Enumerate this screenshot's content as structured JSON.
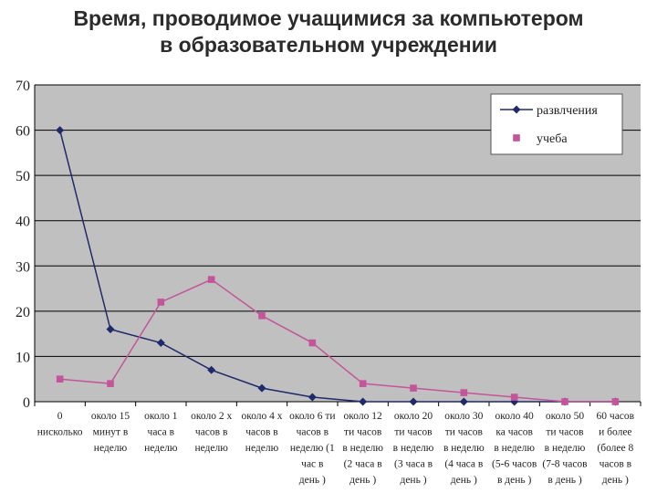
{
  "title": {
    "line1": "Время, проводимое учащимися за компьютером",
    "line2": "в образовательном учреждении"
  },
  "colors": {
    "plot_background": "#c0c0c0",
    "grid": "#000000",
    "series_entertainment": "#1f2a6b",
    "series_study": "#c4559a"
  },
  "chart_data": {
    "type": "line",
    "title": "Время, проводимое учащимися за компьютером в образовательном учреждении",
    "ylim": [
      0,
      70
    ],
    "yticks": [
      0,
      10,
      20,
      30,
      40,
      50,
      60,
      70
    ],
    "grid": true,
    "legend_position": "top-right",
    "categories": [
      [
        "0",
        "нисколько"
      ],
      [
        "около 15",
        "минут в",
        "неделю"
      ],
      [
        "около 1",
        "часа в",
        "неделю"
      ],
      [
        "около 2 х",
        "часов в",
        "неделю"
      ],
      [
        "около 4 х",
        "часов в",
        "неделю"
      ],
      [
        "около 6 ти",
        "часов в",
        "неделю (1",
        "час в",
        "день )"
      ],
      [
        "около 12",
        "ти часов",
        "в неделю",
        "(2 часа в",
        "день )"
      ],
      [
        "около 20",
        "ти часов",
        "в неделю",
        "(3 часа в",
        "день )"
      ],
      [
        "около 30",
        "ти часов",
        "в неделю",
        "(4 часа в",
        "день )"
      ],
      [
        "около 40",
        "ка часов",
        "в неделю",
        "(5-6 часов",
        "в день )"
      ],
      [
        "около 50",
        "ти часов",
        "в неделю",
        "(7-8 часов",
        "в день )"
      ],
      [
        "60 часов",
        "и более",
        "(более 8",
        "часов в",
        "день )"
      ]
    ],
    "series": [
      {
        "name": "развлчения",
        "marker": "diamond",
        "values": [
          60,
          16,
          13,
          7,
          3,
          1,
          0,
          0,
          0,
          0,
          0,
          0
        ]
      },
      {
        "name": "учеба",
        "marker": "square",
        "values": [
          5,
          4,
          22,
          27,
          19,
          13,
          4,
          3,
          2,
          1,
          0,
          0
        ]
      }
    ]
  }
}
